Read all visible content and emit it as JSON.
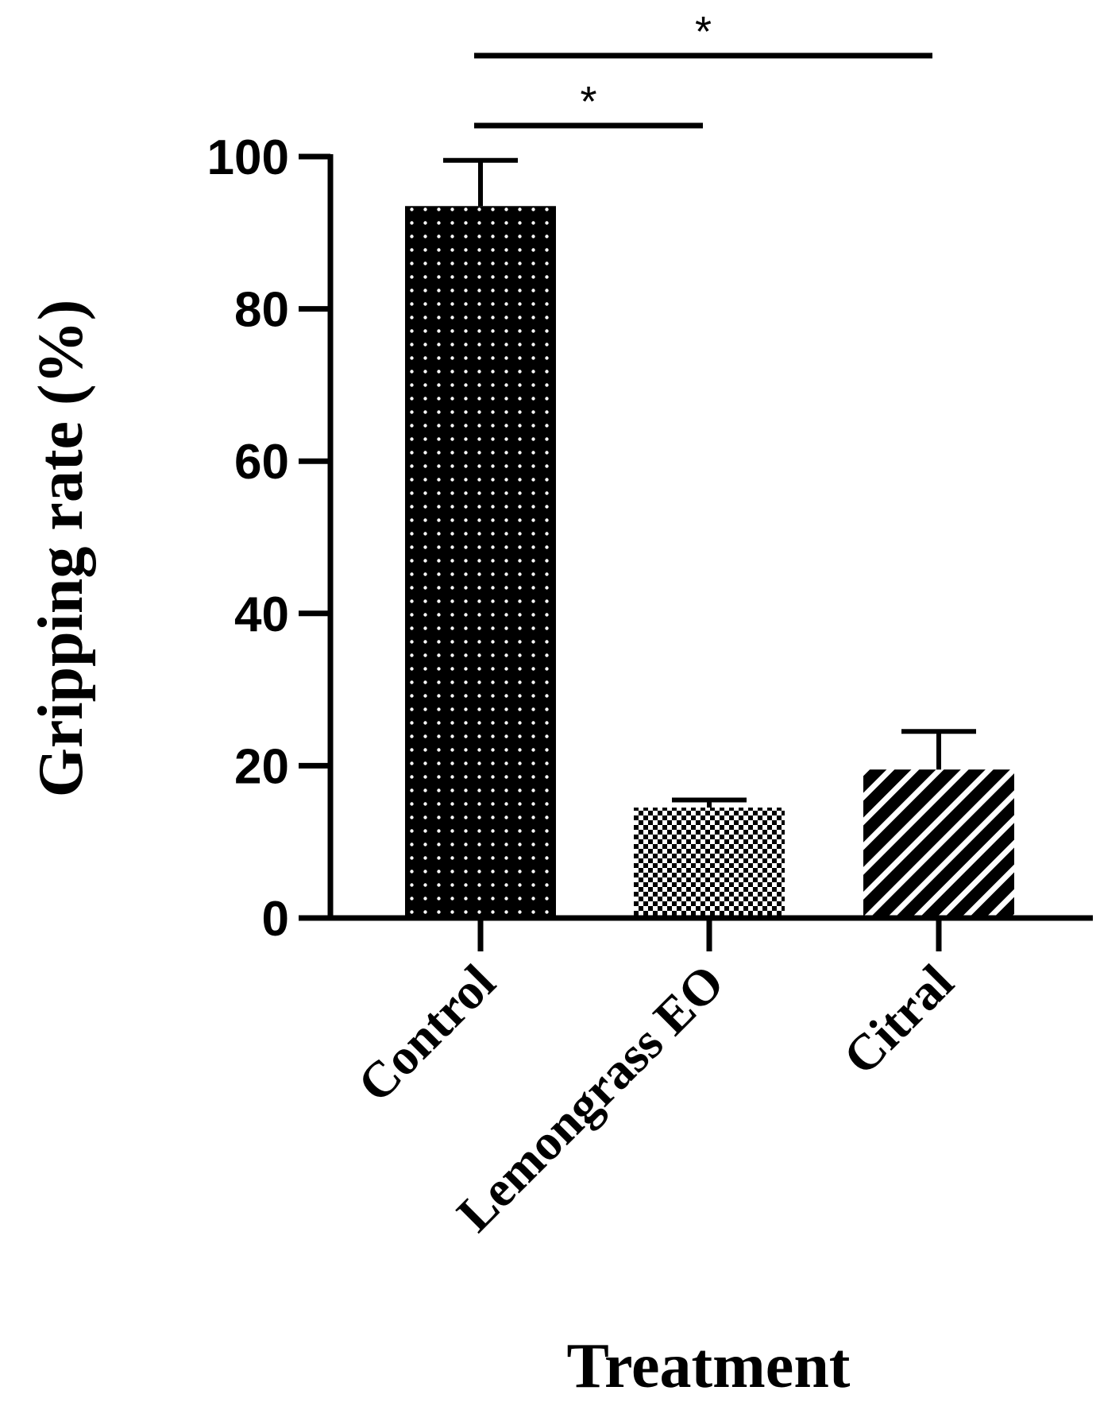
{
  "chart_data": {
    "type": "bar",
    "categories": [
      "Control",
      "Lemongrass EO",
      "Citral"
    ],
    "values": [
      93.5,
      14.5,
      19.5
    ],
    "error": [
      6.0,
      1.0,
      5.0
    ],
    "xlabel": "Treatment",
    "ylabel": "Gripping rate (%)",
    "ylim": [
      0,
      100
    ],
    "yticks": [
      "0",
      "20",
      "40",
      "60",
      "80",
      "100"
    ],
    "grid": false,
    "bar_patterns": [
      "dotted",
      "checkered",
      "diagonal-hatch"
    ],
    "significance": [
      {
        "from": "Control",
        "to": "Lemongrass EO",
        "label": "*"
      },
      {
        "from": "Control",
        "to": "Citral",
        "label": "*"
      }
    ]
  },
  "colors": {
    "bar_fill": "#000000",
    "pattern": "#ffffff",
    "axis": "#000000"
  }
}
